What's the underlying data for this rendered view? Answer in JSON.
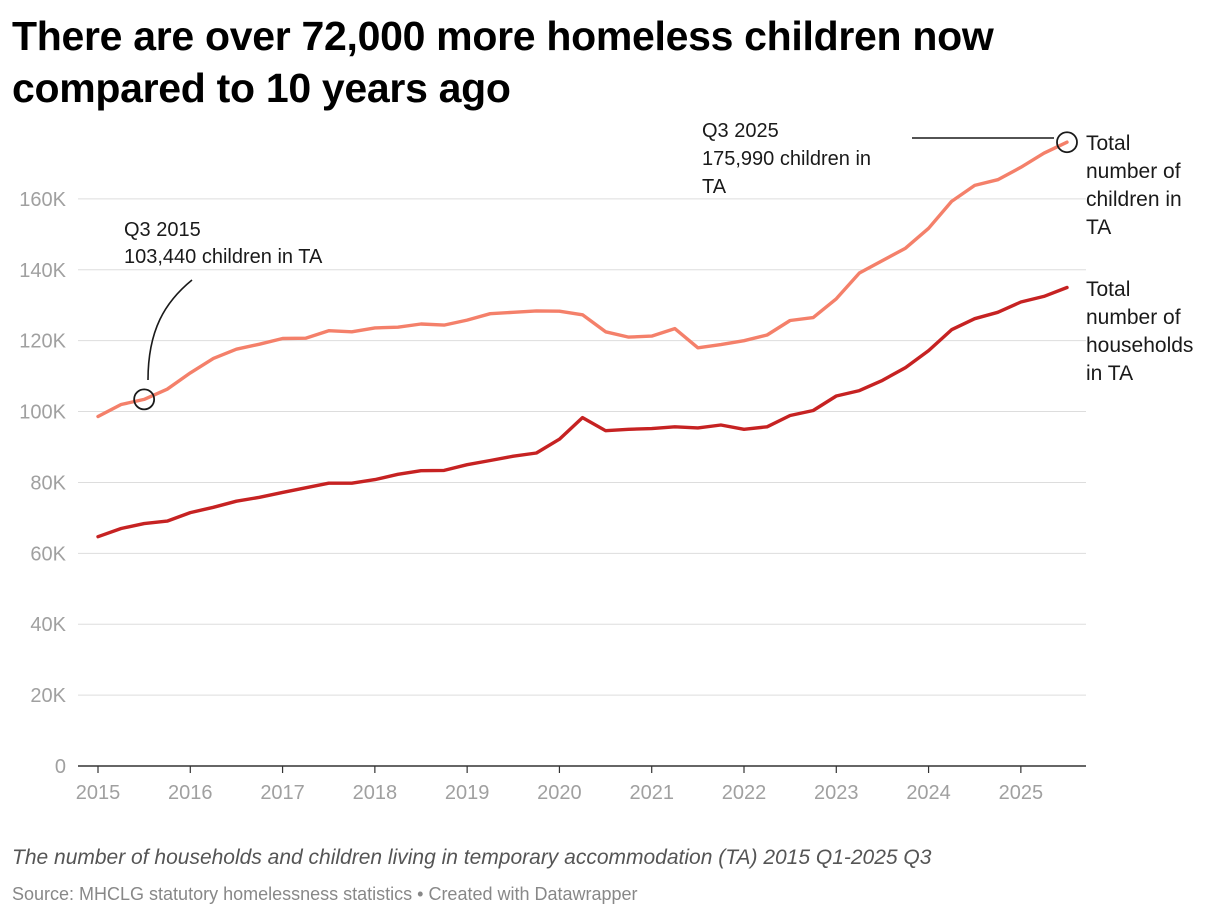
{
  "header": {
    "title": "There are over 72,000 more homeless children now compared to 10 years ago"
  },
  "footer": {
    "caption": "The number of households and children living in temporary accommodation (TA) 2015 Q1-2025 Q3",
    "source": "Source: MHCLG statutory homelessness statistics • Created with Datawrapper"
  },
  "chart_data": {
    "type": "line",
    "title": "There are over 72,000 more homeless children now compared to 10 years ago",
    "xlabel": "",
    "ylabel": "",
    "ylim": [
      0,
      180000
    ],
    "xlim": [
      2015,
      2025.5
    ],
    "grid": true,
    "y_ticks": [
      0,
      20000,
      40000,
      60000,
      80000,
      100000,
      120000,
      140000,
      160000
    ],
    "y_tick_labels": [
      "0",
      "20K",
      "40K",
      "60K",
      "80K",
      "100K",
      "120K",
      "140K",
      "160K"
    ],
    "x_ticks": [
      2015,
      2016,
      2017,
      2018,
      2019,
      2020,
      2021,
      2022,
      2023,
      2024,
      2025
    ],
    "x_tick_labels": [
      "2015",
      "2016",
      "2017",
      "2018",
      "2019",
      "2020",
      "2021",
      "2022",
      "2023",
      "2024",
      "2025"
    ],
    "x": [
      "2015 Q1",
      "2015 Q2",
      "2015 Q3",
      "2015 Q4",
      "2016 Q1",
      "2016 Q2",
      "2016 Q3",
      "2016 Q4",
      "2017 Q1",
      "2017 Q2",
      "2017 Q3",
      "2017 Q4",
      "2018 Q1",
      "2018 Q2",
      "2018 Q3",
      "2018 Q4",
      "2019 Q1",
      "2019 Q2",
      "2019 Q3",
      "2019 Q4",
      "2020 Q1",
      "2020 Q2",
      "2020 Q3",
      "2020 Q4",
      "2021 Q1",
      "2021 Q2",
      "2021 Q3",
      "2021 Q4",
      "2022 Q1",
      "2022 Q2",
      "2022 Q3",
      "2022 Q4",
      "2023 Q1",
      "2023 Q2",
      "2023 Q3",
      "2023 Q4",
      "2024 Q1",
      "2024 Q2",
      "2024 Q3",
      "2024 Q4",
      "2025 Q1",
      "2025 Q2",
      "2025 Q3"
    ],
    "series": [
      {
        "name": "Total number of children in TA",
        "color": "#f4806a",
        "values": [
          98600,
          102000,
          103440,
          106300,
          110900,
          115000,
          117600,
          119000,
          120600,
          120700,
          122800,
          122500,
          123600,
          123800,
          124700,
          124400,
          125800,
          127600,
          128000,
          128400,
          128300,
          127300,
          122500,
          121000,
          121300,
          123400,
          118000,
          118900,
          120000,
          121600,
          125700,
          126500,
          131800,
          139100,
          142600,
          146100,
          151700,
          159300,
          163800,
          165400,
          168900,
          172900,
          175990
        ]
      },
      {
        "name": "Total number of households in TA",
        "color": "#c62222",
        "values": [
          64700,
          67000,
          68400,
          69100,
          71500,
          73000,
          74700,
          75800,
          77200,
          78500,
          79800,
          79800,
          80800,
          82300,
          83300,
          83400,
          85000,
          86200,
          87400,
          88300,
          92200,
          98300,
          94600,
          95000,
          95200,
          95700,
          95400,
          96200,
          95000,
          95700,
          98900,
          100300,
          104400,
          105900,
          108800,
          112400,
          117200,
          123100,
          126200,
          128000,
          130900,
          132500,
          135000
        ]
      }
    ],
    "annotations": [
      {
        "x": "2015 Q3",
        "value": 103440,
        "period": "Q3 2015",
        "text": "103,440 children in TA"
      },
      {
        "x": "2025 Q3",
        "value": 175990,
        "period": "Q3 2025",
        "text_line1": "175,990 children in",
        "text_line2": "TA"
      }
    ],
    "series_labels": {
      "children": [
        "Total",
        "number of",
        "children in",
        "TA"
      ],
      "households": [
        "Total",
        "number of",
        "households",
        "in TA"
      ]
    }
  }
}
